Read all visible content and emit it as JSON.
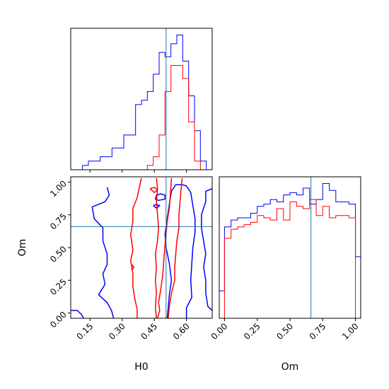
{
  "chart_data": {
    "type": "corner",
    "colors": {
      "series_a": "#0000ff",
      "series_b": "#ff0000",
      "truth": "#1f77b4"
    },
    "truth": {
      "H0": 0.505,
      "Om": 0.66
    },
    "panels": [
      {
        "id": "h0-marginal",
        "type": "histogram",
        "x_ticks": [
          0.15,
          0.3,
          0.45,
          0.6
        ],
        "xlim": [
          0.06,
          0.72
        ],
        "bin_edges": [
          0.06,
          0.0875,
          0.115,
          0.1425,
          0.17,
          0.1975,
          0.225,
          0.2525,
          0.28,
          0.3075,
          0.335,
          0.3625,
          0.39,
          0.4175,
          0.445,
          0.4725,
          0.5,
          0.5275,
          0.555,
          0.5825,
          0.61,
          0.6375,
          0.665,
          0.6925,
          0.72
        ],
        "series": [
          {
            "color": "#0000ff",
            "counts": [
              0,
              0,
              1,
              2,
              2,
              3,
              3,
              5,
              5,
              8,
              8,
              15,
              16,
              18,
              22,
              27,
              26,
              29,
              31,
              25,
              17,
              9,
              2,
              0
            ]
          },
          {
            "color": "#ff0000",
            "counts": [
              0,
              0,
              0,
              0,
              0,
              0,
              0,
              0,
              0,
              0,
              0,
              0,
              0,
              1,
              3,
              8,
              18,
              24,
              24,
              21,
              11,
              2,
              0,
              0
            ]
          }
        ]
      },
      {
        "id": "h0-om-contour",
        "type": "contour",
        "xlabel": "H0",
        "ylabel": "Om",
        "x_ticks": [
          0.15,
          0.3,
          0.45,
          0.6
        ],
        "y_ticks": [
          0.0,
          0.25,
          0.5,
          0.75,
          1.0
        ],
        "xlim": [
          0.06,
          0.72
        ],
        "ylim": [
          -0.04,
          1.04
        ],
        "contours": [
          {
            "color": "#0000ff",
            "points": [
              [
                0.23,
                0.96
              ],
              [
                0.24,
                0.9
              ],
              [
                0.22,
                0.85
              ],
              [
                0.16,
                0.81
              ],
              [
                0.17,
                0.72
              ],
              [
                0.21,
                0.65
              ],
              [
                0.21,
                0.55
              ],
              [
                0.23,
                0.45
              ],
              [
                0.23,
                0.37
              ],
              [
                0.21,
                0.3
              ],
              [
                0.22,
                0.22
              ],
              [
                0.19,
                0.14
              ],
              [
                0.23,
                0.08
              ],
              [
                0.25,
                0.02
              ],
              [
                0.26,
                -0.04
              ]
            ]
          },
          {
            "color": "#0000ff",
            "points": [
              [
                0.06,
                0.02
              ],
              [
                0.09,
                0.02
              ],
              [
                0.11,
                -0.01
              ],
              [
                0.12,
                -0.04
              ]
            ]
          },
          {
            "color": "#0000ff",
            "points": [
              [
                0.445,
                0.82
              ],
              [
                0.46,
                0.83
              ],
              [
                0.475,
                0.82
              ],
              [
                0.46,
                0.8
              ],
              [
                0.445,
                0.82
              ]
            ]
          },
          {
            "color": "#0000ff",
            "points": [
              [
                0.46,
                0.9
              ],
              [
                0.48,
                0.91
              ],
              [
                0.5,
                0.9
              ],
              [
                0.5,
                0.87
              ],
              [
                0.47,
                0.86
              ],
              [
                0.455,
                0.87
              ],
              [
                0.46,
                0.9
              ]
            ]
          },
          {
            "color": "#0000ff",
            "points": [
              [
                0.6,
                -0.04
              ],
              [
                0.6,
                0.04
              ],
              [
                0.625,
                0.12
              ],
              [
                0.62,
                0.25
              ],
              [
                0.625,
                0.38
              ],
              [
                0.63,
                0.5
              ],
              [
                0.64,
                0.62
              ],
              [
                0.64,
                0.72
              ],
              [
                0.63,
                0.82
              ],
              [
                0.62,
                0.92
              ],
              [
                0.6,
                0.97
              ],
              [
                0.58,
                0.98
              ],
              [
                0.55,
                0.98
              ],
              [
                0.53,
                0.93
              ],
              [
                0.52,
                0.83
              ],
              [
                0.51,
                0.72
              ],
              [
                0.5,
                0.6
              ],
              [
                0.505,
                0.5
              ],
              [
                0.52,
                0.38
              ],
              [
                0.53,
                0.25
              ],
              [
                0.52,
                0.14
              ],
              [
                0.515,
                0.04
              ],
              [
                0.51,
                -0.04
              ]
            ]
          },
          {
            "color": "#0000ff",
            "points": [
              [
                0.72,
                0.95
              ],
              [
                0.69,
                0.93
              ],
              [
                0.69,
                0.85
              ],
              [
                0.67,
                0.75
              ],
              [
                0.67,
                0.65
              ],
              [
                0.68,
                0.55
              ],
              [
                0.69,
                0.45
              ],
              [
                0.68,
                0.35
              ],
              [
                0.69,
                0.25
              ],
              [
                0.69,
                0.15
              ],
              [
                0.7,
                0.05
              ],
              [
                0.72,
                0.02
              ]
            ]
          },
          {
            "color": "#ff0000",
            "points": [
              [
                0.39,
                1.03
              ],
              [
                0.38,
                0.96
              ],
              [
                0.37,
                0.88
              ],
              [
                0.35,
                0.8
              ],
              [
                0.35,
                0.7
              ],
              [
                0.34,
                0.6
              ],
              [
                0.35,
                0.48
              ],
              [
                0.34,
                0.4
              ],
              [
                0.35,
                0.3
              ],
              [
                0.35,
                0.2
              ],
              [
                0.36,
                0.1
              ],
              [
                0.37,
                0.03
              ],
              [
                0.37,
                -0.04
              ]
            ]
          },
          {
            "color": "#ff0000",
            "points": [
              [
                0.345,
                0.37
              ],
              [
                0.355,
                0.35
              ],
              [
                0.345,
                0.33
              ],
              [
                0.345,
                0.37
              ]
            ]
          },
          {
            "color": "#ff0000",
            "points": [
              [
                0.43,
                0.95
              ],
              [
                0.45,
                0.96
              ],
              [
                0.465,
                0.94
              ],
              [
                0.45,
                0.92
              ],
              [
                0.43,
                0.95
              ]
            ]
          },
          {
            "color": "#ff0000",
            "points": [
              [
                0.46,
                1.03
              ],
              [
                0.465,
                0.95
              ],
              [
                0.46,
                0.85
              ],
              [
                0.465,
                0.75
              ],
              [
                0.47,
                0.65
              ],
              [
                0.465,
                0.55
              ],
              [
                0.455,
                0.45
              ],
              [
                0.46,
                0.35
              ],
              [
                0.455,
                0.25
              ],
              [
                0.46,
                0.15
              ],
              [
                0.455,
                0.05
              ],
              [
                0.46,
                -0.04
              ]
            ]
          },
          {
            "color": "#ff0000",
            "points": [
              [
                0.465,
                -0.04
              ],
              [
                0.475,
                0.02
              ],
              [
                0.47,
                0.08
              ],
              [
                0.48,
                0.18
              ],
              [
                0.49,
                0.3
              ],
              [
                0.495,
                0.42
              ],
              [
                0.5,
                0.52
              ],
              [
                0.505,
                0.6
              ],
              [
                0.51,
                0.7
              ],
              [
                0.52,
                0.8
              ],
              [
                0.525,
                0.9
              ],
              [
                0.53,
                1.03
              ]
            ]
          },
          {
            "color": "#ff0000",
            "points": [
              [
                0.58,
                1.03
              ],
              [
                0.575,
                0.95
              ],
              [
                0.57,
                0.85
              ],
              [
                0.565,
                0.75
              ],
              [
                0.565,
                0.65
              ],
              [
                0.555,
                0.55
              ],
              [
                0.55,
                0.45
              ],
              [
                0.545,
                0.35
              ],
              [
                0.545,
                0.25
              ],
              [
                0.53,
                0.15
              ],
              [
                0.52,
                0.05
              ],
              [
                0.515,
                -0.04
              ]
            ]
          }
        ]
      },
      {
        "id": "om-marginal",
        "type": "histogram",
        "xlabel": "Om",
        "x_ticks": [
          0.0,
          0.25,
          0.5,
          0.75,
          1.0
        ],
        "xlim": [
          -0.04,
          1.04
        ],
        "bin_edges": [
          -0.04,
          0.0,
          0.05,
          0.1,
          0.15,
          0.2,
          0.25,
          0.3,
          0.35,
          0.4,
          0.45,
          0.5,
          0.55,
          0.6,
          0.65,
          0.7,
          0.75,
          0.8,
          0.85,
          0.9,
          0.95,
          1.0,
          1.04
        ],
        "series": [
          {
            "color": "#0000ff",
            "counts": [
              12,
              40,
              43,
              44,
              44,
              46,
              49,
              50,
              52,
              51,
              54,
              55,
              54,
              57,
              50,
              52,
              59,
              56,
              51,
              51,
              50,
              27
            ]
          },
          {
            "color": "#ff0000",
            "counts": [
              0,
              35,
              39,
              40,
              41,
              42,
              45,
              44,
              43,
              48,
              43,
              51,
              49,
              48,
              52,
              45,
              49,
              44,
              45,
              45,
              44,
              0
            ]
          }
        ]
      }
    ]
  }
}
